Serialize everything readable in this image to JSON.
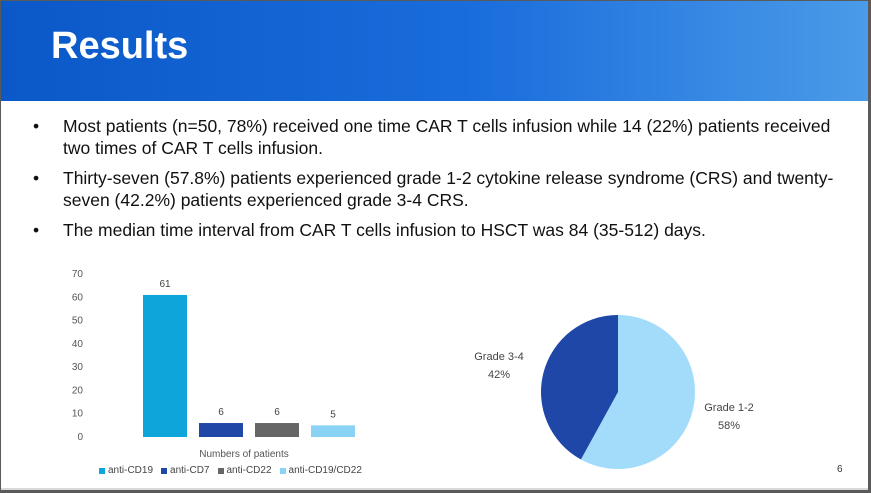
{
  "slide": {
    "title": "Results",
    "bullets": [
      "Most patients (n=50, 78%) received one time CAR T cells infusion while 14 (22%) patients received two times of CAR T cells infusion.",
      "Thirty-seven (57.8%) patients experienced grade 1-2 cytokine release syndrome (CRS) and twenty-seven (42.2%) patients experienced grade 3-4 CRS.",
      "The median time interval from CAR T cells infusion to HSCT was 84 (35-512) days."
    ],
    "bullet_glyph": "•",
    "page_number": "6"
  },
  "chart_data": [
    {
      "type": "bar",
      "categories": [
        "anti-CD19",
        "anti-CD7",
        "anti-CD22",
        "anti-CD19/CD22"
      ],
      "values": [
        61,
        6,
        6,
        5
      ],
      "colors": [
        "#0ea5db",
        "#1f47a8",
        "#666666",
        "#8ad3f5"
      ],
      "title": "",
      "xlabel": "Numbers of patients",
      "ylabel": "",
      "ylim": [
        0,
        70
      ],
      "yticks": [
        "70",
        "60",
        "50",
        "40",
        "30",
        "20",
        "10",
        "0"
      ],
      "legend": [
        "anti-CD19",
        "anti-CD7",
        "anti-CD22",
        "anti-CD19/CD22"
      ],
      "legend_position": "bottom",
      "grid": false
    },
    {
      "type": "pie",
      "labels": [
        "Grade 1-2",
        "Grade 3-4"
      ],
      "values": [
        58,
        42
      ],
      "value_labels": [
        "58%",
        "42%"
      ],
      "colors": [
        "#a3dcfb",
        "#1f47a8"
      ],
      "title": ""
    }
  ]
}
